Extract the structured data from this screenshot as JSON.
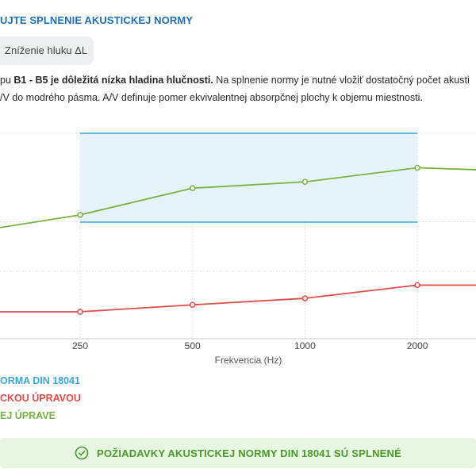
{
  "header": {
    "title": "UJTE SPLNENIE AKUSTICKEJ NORMY"
  },
  "tab": {
    "label": "Zníženie hluku ΔL"
  },
  "description": {
    "line1_pre": "pu ",
    "line1_bold": "B1 - B5 je dôležitá nízka hladina hlučnosti.",
    "line1_post": " Na splnenie normy je nutné vložiť dostatočný počet akusti",
    "line2": "/V do modrého pásma. A/V definuje pomer ekvivalentnej absorpčnej plochy k objemu miestnosti."
  },
  "colors": {
    "norm": "#3aa6de",
    "before": "#e34b4b",
    "after": "#77b341",
    "band_fill": "#e6f3fb",
    "success": "#4a9a2a"
  },
  "chart_data": {
    "type": "line",
    "xlabel": "Frekvencia (Hz)",
    "ylabel": "",
    "x_ticks": [
      "250",
      "500",
      "1000",
      "2000"
    ],
    "x_range_ticks": [
      -0.7,
      3.52
    ],
    "y_range": [
      0,
      100
    ],
    "grid": true,
    "norm_band": {
      "x_from": "250",
      "x_to": "2000",
      "lower": 56,
      "upper": 93
    },
    "series": [
      {
        "name": "ORMA DIN 18041",
        "role": "norm",
        "points": []
      },
      {
        "name": "CKOU ÚPRAVOU",
        "role": "before",
        "points": [
          {
            "x": "125",
            "y": 0
          },
          {
            "x": "250",
            "y": 0
          },
          {
            "x": "500",
            "y": 3.3
          },
          {
            "x": "1000",
            "y": 6.4
          },
          {
            "x": "2000",
            "y": 12.7
          },
          {
            "x": "4000",
            "y": 12.7
          }
        ]
      },
      {
        "name": "EJ ÚPRAVE",
        "role": "after",
        "points": [
          {
            "x": "125",
            "y": 37.6
          },
          {
            "x": "250",
            "y": 46.1
          },
          {
            "x": "500",
            "y": 58.8
          },
          {
            "x": "1000",
            "y": 61.8
          },
          {
            "x": "2000",
            "y": 68.5
          },
          {
            "x": "4000",
            "y": 66.7
          }
        ]
      }
    ]
  },
  "status": {
    "message": "POŽIADAVKY AKUSTICKEJ NORMY DIN 18041 SÚ SPLNENÉ"
  }
}
